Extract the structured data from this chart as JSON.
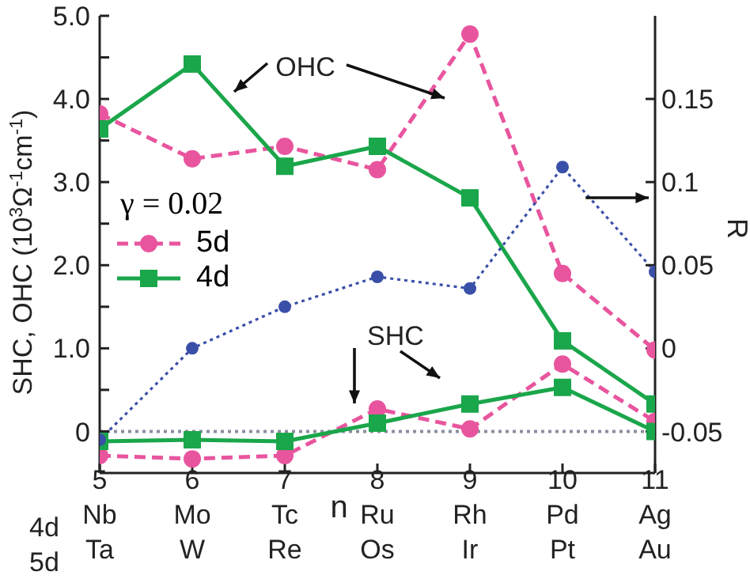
{
  "chart_data": {
    "type": "line",
    "xlabel": "n",
    "ylabel": "SHC, OHC (10$^{3}$Ω$^{-1}$cm$^{-1}$)",
    "y2label": "R",
    "legend_title": "γ = 0.02",
    "x": [
      5,
      6,
      7,
      8,
      9,
      10,
      11
    ],
    "series": [
      {
        "name": "5d",
        "color": "#e8559e",
        "line_style": "dashed",
        "marker": "circle",
        "values": [
          3.82,
          3.28,
          3.43,
          3.15,
          4.78,
          1.9,
          0.98
        ]
      },
      {
        "name": "4d",
        "color": "#1aa64a",
        "line_style": "solid",
        "marker": "square",
        "values": [
          3.64,
          4.42,
          3.19,
          3.43,
          2.81,
          1.09,
          0.33
        ]
      },
      {
        "color": "#e8559e",
        "line_style": "dashed",
        "marker": "circle",
        "values": [
          -0.29,
          -0.33,
          -0.29,
          0.27,
          0.03,
          0.81,
          0.12
        ]
      },
      {
        "color": "#1aa64a",
        "line_style": "solid",
        "marker": "square",
        "values": [
          -0.12,
          -0.1,
          -0.12,
          0.1,
          0.33,
          0.53,
          0.0
        ]
      },
      {
        "color": "#3a4fa8",
        "line_style": "dotted",
        "marker": "circle",
        "axis": "y2",
        "values": [
          -0.055,
          0.0,
          0.025,
          0.043,
          0.036,
          0.109,
          0.046
        ]
      }
    ],
    "xlim": [
      5,
      11
    ],
    "xticks": [
      {
        "value": 5,
        "label": "5\nNb\nTa"
      },
      {
        "value": 6,
        "label": "6\nMo\nW"
      },
      {
        "value": 7,
        "label": "7\nTc\nRe"
      },
      {
        "value": 8,
        "label": "8\nRu\nOs"
      },
      {
        "value": 9,
        "label": "9\nRh\nIr"
      },
      {
        "value": 10,
        "label": "10\nPd\nPt"
      },
      {
        "value": 11,
        "label": "11\nAg\nAu"
      }
    ],
    "ylim": [
      -0.5,
      5.0
    ],
    "yticks": [
      0,
      {
        "value": 0.5,
        "label": null
      },
      {
        "value": 1,
        "label": "1.0"
      },
      {
        "value": 1.5,
        "label": null
      },
      {
        "value": 2,
        "label": "2.0"
      },
      {
        "value": 2.5,
        "label": null
      },
      {
        "value": 3,
        "label": "3.0"
      },
      {
        "value": 3.5,
        "label": null
      },
      {
        "value": 4,
        "label": "4.0"
      },
      {
        "value": 4.5,
        "label": null
      },
      {
        "value": 5,
        "label": "5.0"
      }
    ],
    "y2lim": [
      -0.075,
      0.2
    ],
    "y2ticks": [
      -0.05,
      0,
      0.05,
      0.1,
      0.15
    ],
    "ref_lines": [
      {
        "axis": "y",
        "value": 0,
        "color": "#8a8fa0",
        "line_style": "dotted"
      }
    ],
    "annotations": [
      "OHC",
      "SHC",
      "4d",
      "5d"
    ],
    "legend": "left",
    "grid": false
  }
}
